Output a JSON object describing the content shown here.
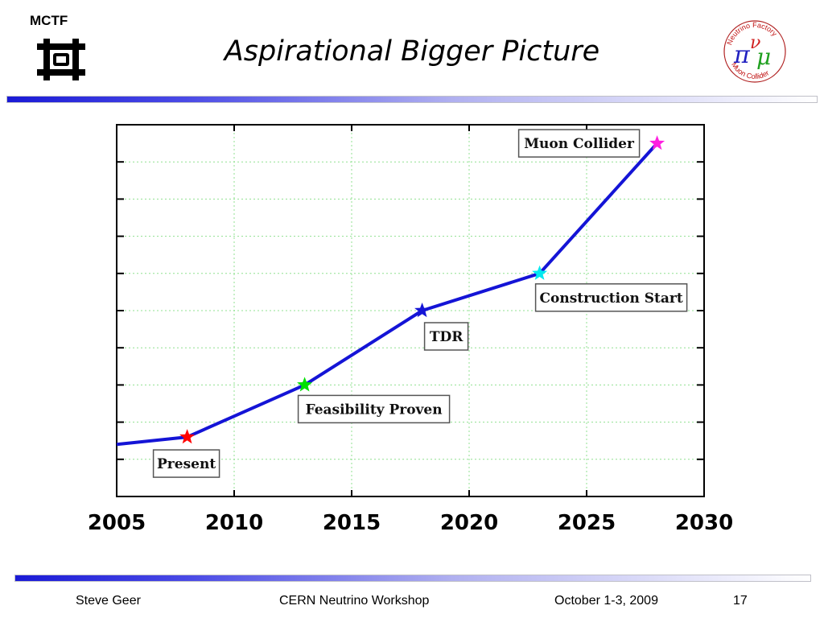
{
  "header": {
    "org_label": "MCTF",
    "title": "Aspirational Bigger Picture",
    "logo_icon": "fermilab-logo-icon",
    "logo_right_icon": "neutrino-factory-muon-collider-logo-icon"
  },
  "nf_logo_text": {
    "top": "Neutrino Factory",
    "bottom": "Muon Collider",
    "pi": "π",
    "nu": "ν",
    "mu": "μ"
  },
  "chart_data": {
    "type": "line",
    "title": "",
    "xlabel": "",
    "ylabel": "",
    "xlim": [
      2005,
      2030
    ],
    "ylim": [
      0,
      10
    ],
    "x_ticks": [
      "2005",
      "2010",
      "2015",
      "2020",
      "2025",
      "2030"
    ],
    "grid": true,
    "series": [
      {
        "x": [
          2005,
          2008,
          2013,
          2018,
          2023,
          2028
        ],
        "y": [
          1.4,
          1.6,
          3.0,
          5.0,
          6.0,
          9.5
        ],
        "color": "#1414d6"
      }
    ],
    "milestones": [
      {
        "label": "Present",
        "x": 2008,
        "y": 1.6,
        "color": "#ff0000"
      },
      {
        "label": "Feasibility Proven",
        "x": 2013,
        "y": 3.0,
        "color": "#00e000"
      },
      {
        "label": "TDR",
        "x": 2018,
        "y": 5.0,
        "color": "#1414d6"
      },
      {
        "label": "Construction Start",
        "x": 2023,
        "y": 6.0,
        "color": "#00e8f0"
      },
      {
        "label": "Muon Collider",
        "x": 2028,
        "y": 9.5,
        "color": "#ff20e0"
      }
    ]
  },
  "footer": {
    "author": "Steve Geer",
    "event": "CERN Neutrino Workshop",
    "date": "October 1-3, 2009",
    "page": "17"
  },
  "colors": {
    "accent_rule": "#1a1ad6",
    "grid": "#90e090",
    "line": "#1414d6"
  }
}
